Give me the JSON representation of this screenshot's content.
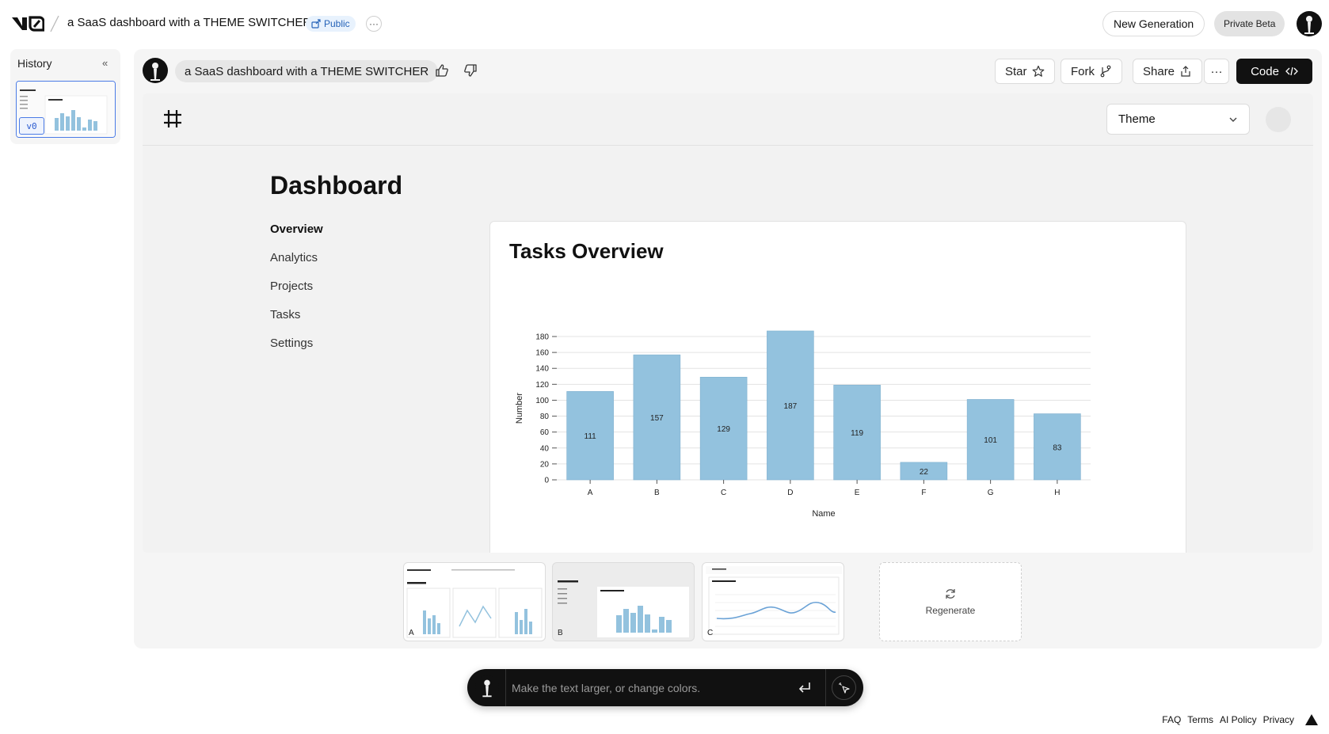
{
  "topbar": {
    "project_title": "a SaaS dashboard with a THEME SWITCHER",
    "visibility": "Public",
    "more": "···",
    "new_generation": "New Generation",
    "private_beta": "Private Beta"
  },
  "history": {
    "label": "History",
    "version_tag": "v0"
  },
  "chat": {
    "prompt": "a SaaS dashboard with a THEME SWITCHER"
  },
  "actions": {
    "star": "Star",
    "fork": "Fork",
    "share": "Share",
    "more": "···",
    "code": "Code"
  },
  "preview": {
    "theme_select": "Theme",
    "dashboard_title": "Dashboard",
    "nav": [
      "Overview",
      "Analytics",
      "Projects",
      "Tasks",
      "Settings"
    ],
    "chart_title": "Tasks Overview"
  },
  "chart_data": {
    "type": "bar",
    "title": "Tasks Overview",
    "categories": [
      "A",
      "B",
      "C",
      "D",
      "E",
      "F",
      "G",
      "H"
    ],
    "values": [
      111,
      157,
      129,
      187,
      119,
      22,
      101,
      83
    ],
    "xlabel": "Name",
    "ylabel": "Number",
    "ylim": [
      0,
      180
    ],
    "yticks": [
      0,
      20,
      40,
      60,
      80,
      100,
      120,
      140,
      160,
      180
    ],
    "bar_color": "#93c2de",
    "grid": true
  },
  "variants": [
    {
      "label": "A"
    },
    {
      "label": "B"
    },
    {
      "label": "C"
    }
  ],
  "regenerate": "Regenerate",
  "input": {
    "placeholder": "Make the text larger, or change colors."
  },
  "footer": {
    "faq": "FAQ",
    "terms": "Terms",
    "ai_policy": "AI Policy",
    "privacy": "Privacy"
  }
}
